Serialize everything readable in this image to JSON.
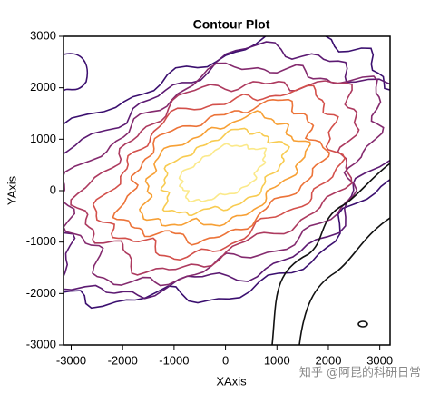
{
  "chart_data": {
    "type": "contour",
    "title": "Contour Plot",
    "xlabel": "XAxis",
    "ylabel": "YAxis",
    "xlim": [
      -3150,
      3200
    ],
    "ylim": [
      -3000,
      3000
    ],
    "xticks": [
      -3000,
      -2000,
      -1000,
      0,
      1000,
      2000,
      3000
    ],
    "yticks": [
      -3000,
      -2000,
      -1000,
      0,
      1000,
      2000,
      3000
    ],
    "annotation": "知乎 @阿昆的科研日常"
  }
}
